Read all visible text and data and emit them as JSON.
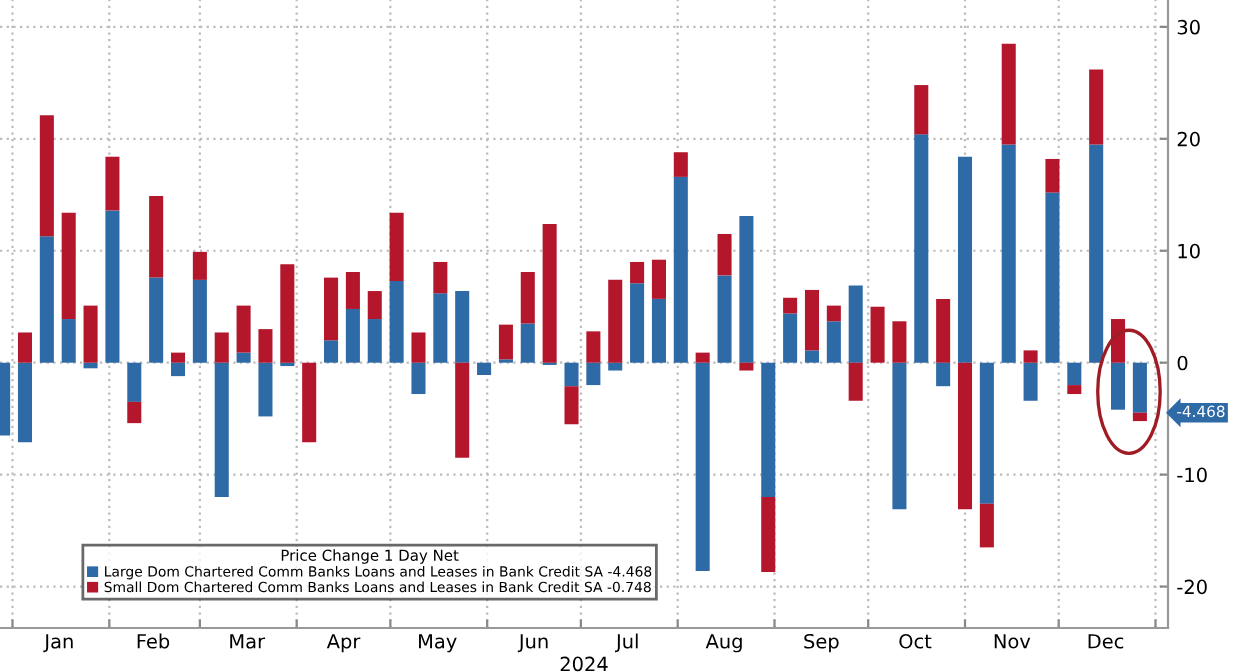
{
  "chart_data": {
    "type": "bar",
    "stacked": true,
    "x": [
      "2023-12-29",
      "2024-01-05",
      "2024-01-12",
      "2024-01-19",
      "2024-01-26",
      "2024-02-02",
      "2024-02-09",
      "2024-02-16",
      "2024-02-23",
      "2024-03-01",
      "2024-03-08",
      "2024-03-15",
      "2024-03-22",
      "2024-03-29",
      "2024-04-05",
      "2024-04-12",
      "2024-04-19",
      "2024-04-26",
      "2024-05-03",
      "2024-05-10",
      "2024-05-17",
      "2024-05-24",
      "2024-05-31",
      "2024-06-07",
      "2024-06-14",
      "2024-06-21",
      "2024-06-28",
      "2024-07-05",
      "2024-07-12",
      "2024-07-19",
      "2024-07-26",
      "2024-08-02",
      "2024-08-09",
      "2024-08-16",
      "2024-08-23",
      "2024-08-30",
      "2024-09-06",
      "2024-09-13",
      "2024-09-20",
      "2024-09-27",
      "2024-10-04",
      "2024-10-11",
      "2024-10-18",
      "2024-10-25",
      "2024-11-01",
      "2024-11-08",
      "2024-11-15",
      "2024-11-22",
      "2024-11-29",
      "2024-12-06",
      "2024-12-13",
      "2024-12-20",
      "2024-12-27"
    ],
    "series": [
      {
        "name": "Large Dom Chartered Comm Banks Loans and Leases in Bank Credit SA -4.468",
        "color": "#2e6aa6",
        "values": [
          -6.5,
          -7.1,
          11.3,
          3.9,
          -0.5,
          13.6,
          -3.5,
          7.6,
          -1.2,
          7.4,
          -12.0,
          0.9,
          -4.8,
          -0.3,
          0,
          2.0,
          4.8,
          3.9,
          7.3,
          -2.8,
          6.2,
          6.4,
          -1.1,
          0.3,
          3.5,
          -0.2,
          -2.1,
          -2.0,
          -0.7,
          7.1,
          5.7,
          16.6,
          -18.6,
          7.8,
          13.1,
          -12.0,
          4.4,
          1.1,
          3.7,
          6.9,
          0,
          -13.1,
          20.4,
          -2.1,
          18.4,
          -12.6,
          19.5,
          -3.4,
          15.2,
          -2.0,
          19.5,
          -4.2,
          -4.468
        ]
      },
      {
        "name": "Small Dom Chartered Comm Banks Loans and Leases in Bank Credit SA -0.748",
        "color": "#b4172c",
        "values": [
          0,
          2.7,
          10.8,
          9.5,
          5.1,
          4.8,
          -1.9,
          7.3,
          0.9,
          2.5,
          2.7,
          4.2,
          3.0,
          8.8,
          -7.1,
          5.6,
          3.3,
          2.5,
          6.1,
          2.7,
          2.8,
          -8.5,
          0,
          3.1,
          4.6,
          12.4,
          -3.4,
          2.8,
          7.4,
          1.9,
          3.5,
          2.2,
          0.9,
          3.7,
          -0.7,
          -6.7,
          1.4,
          5.4,
          1.4,
          -3.4,
          5.0,
          3.7,
          4.4,
          5.7,
          -13.1,
          -3.9,
          9.0,
          1.1,
          3.0,
          -0.8,
          6.7,
          3.9,
          -0.748
        ]
      }
    ],
    "legend_title": "Price Change 1 Day Net",
    "legend": "bottom left",
    "xlabel": "2024",
    "xlim": [
      "2023-12-28",
      "2025-01-05"
    ],
    "xticks": [
      {
        "value": "2024-01-01",
        "label": null
      },
      {
        "value": "2024-01-16",
        "label": "Jan"
      },
      {
        "value": "2024-02-01",
        "label": null
      },
      {
        "value": "2024-02-15",
        "label": "Feb"
      },
      {
        "value": "2024-03-01",
        "label": null
      },
      {
        "value": "2024-03-16",
        "label": "Mar"
      },
      {
        "value": "2024-04-01",
        "label": null
      },
      {
        "value": "2024-04-16",
        "label": "Apr"
      },
      {
        "value": "2024-05-01",
        "label": null
      },
      {
        "value": "2024-05-16",
        "label": "May"
      },
      {
        "value": "2024-06-01",
        "label": null
      },
      {
        "value": "2024-06-16",
        "label": "Jun"
      },
      {
        "value": "2024-07-01",
        "label": null
      },
      {
        "value": "2024-07-16",
        "label": "Jul"
      },
      {
        "value": "2024-08-01",
        "label": null
      },
      {
        "value": "2024-08-16",
        "label": "Aug"
      },
      {
        "value": "2024-09-01",
        "label": null
      },
      {
        "value": "2024-09-16",
        "label": "Sep"
      },
      {
        "value": "2024-10-01",
        "label": null
      },
      {
        "value": "2024-10-16",
        "label": "Oct"
      },
      {
        "value": "2024-11-01",
        "label": null
      },
      {
        "value": "2024-11-16",
        "label": "Nov"
      },
      {
        "value": "2024-12-01",
        "label": null
      },
      {
        "value": "2024-12-16",
        "label": "Dec"
      },
      {
        "value": "2025-01-01",
        "label": null
      }
    ],
    "ylim": [
      -23.7,
      32.4
    ],
    "yticks": [
      -20,
      -10,
      0,
      10,
      20,
      30
    ],
    "grid": true,
    "annotations": [
      "-4.468"
    ]
  }
}
